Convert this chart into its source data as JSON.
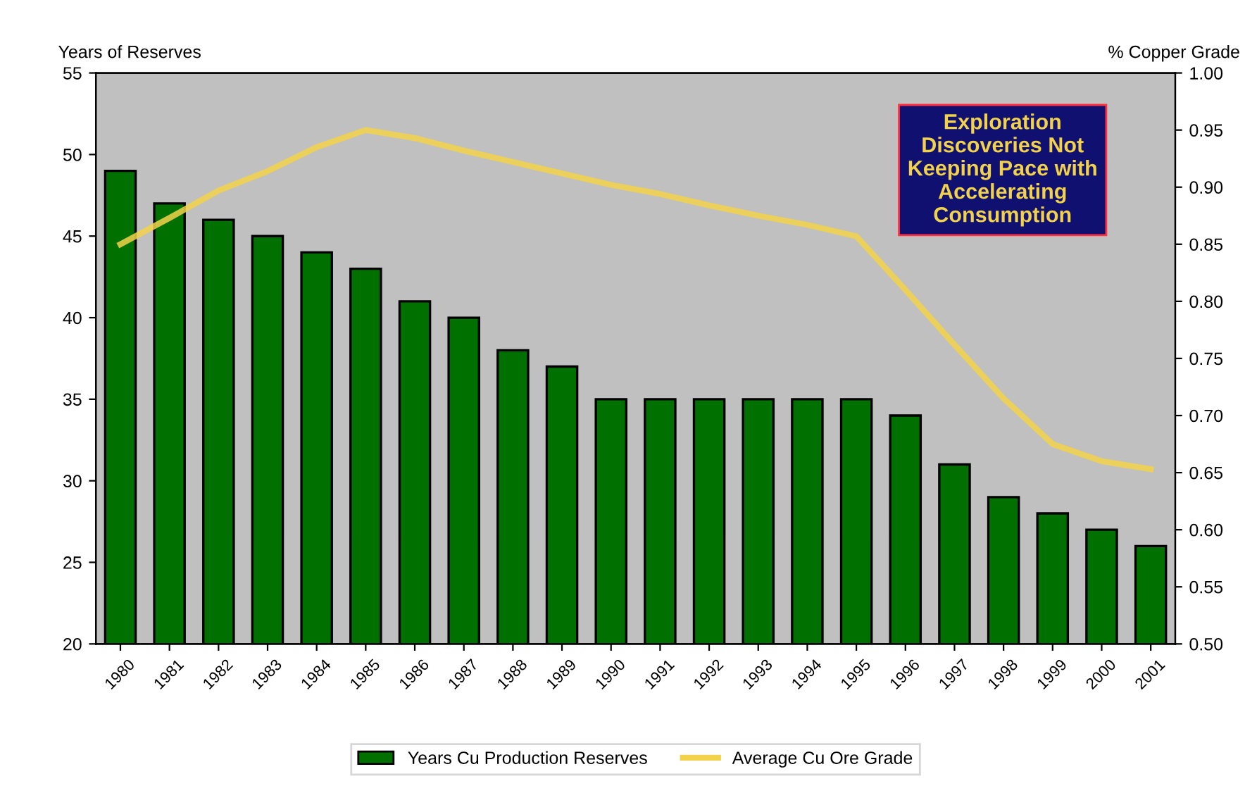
{
  "chart_data": {
    "type": "bar",
    "ylabel": "Years of Reserves",
    "y2label": "% Copper Grade",
    "categories": [
      "1980",
      "1981",
      "1982",
      "1983",
      "1984",
      "1985",
      "1986",
      "1987",
      "1988",
      "1989",
      "1990",
      "1991",
      "1992",
      "1993",
      "1994",
      "1995",
      "1996",
      "1997",
      "1998",
      "1999",
      "2000",
      "2001"
    ],
    "series": [
      {
        "name": "Years Cu Production Reserves",
        "color": "#007000",
        "values": [
          49,
          47,
          46,
          45,
          44,
          43,
          41,
          40,
          38,
          37,
          35,
          35,
          35,
          35,
          35,
          35,
          34,
          31,
          29,
          28,
          27,
          26
        ]
      },
      {
        "name": "Average Cu Ore Grade",
        "type": "line",
        "axis": "y2",
        "color": "#f2d24a",
        "values": [
          0.85,
          0.873,
          0.897,
          0.914,
          0.935,
          0.95,
          0.943,
          0.932,
          0.922,
          0.912,
          0.902,
          0.894,
          0.884,
          0.875,
          0.867,
          0.857,
          0.81,
          0.762,
          0.715,
          0.675,
          0.66,
          0.653
        ]
      }
    ],
    "ylim": [
      20,
      55
    ],
    "yticks": [
      20,
      25,
      30,
      35,
      40,
      45,
      50,
      55
    ],
    "y2lim": [
      0.5,
      1.0
    ],
    "y2ticks": [
      {
        "value": 0.5,
        "label": "0.50"
      },
      {
        "value": 0.55,
        "label": "0.55"
      },
      {
        "value": 0.6,
        "label": "0.60"
      },
      {
        "value": 0.65,
        "label": "0.65"
      },
      {
        "value": 0.7,
        "label": "0.70"
      },
      {
        "value": 0.75,
        "label": "0.75"
      },
      {
        "value": 0.8,
        "label": "0.80"
      },
      {
        "value": 0.85,
        "label": "0.85"
      },
      {
        "value": 0.9,
        "label": "0.90"
      },
      {
        "value": 0.95,
        "label": "0.95"
      },
      {
        "value": 1.0,
        "label": "1.00"
      }
    ],
    "annotations": [
      "Exploration\nDiscoveries Not\nKeeping Pace with\nAccelerating\nConsumption"
    ],
    "grid": false,
    "legend": "bottom",
    "marker": "none",
    "line_style": "solid"
  }
}
